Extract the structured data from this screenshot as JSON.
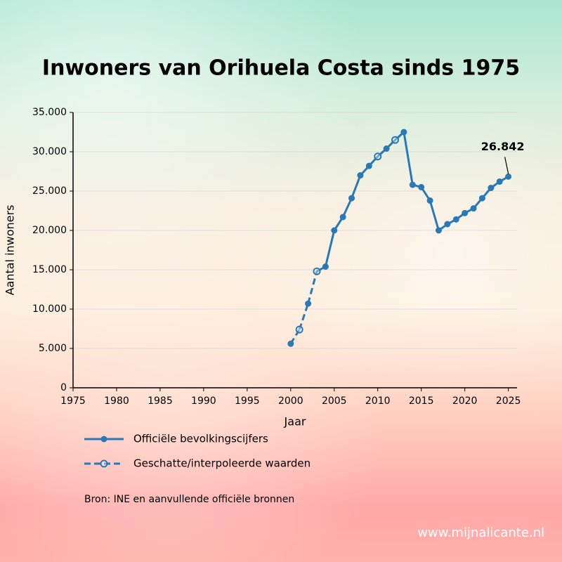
{
  "chart_data": {
    "type": "line",
    "title": "Inwoners van Orihuela Costa sinds 1975",
    "x_label": "Jaar",
    "y_label": "Aantal inwoners",
    "x": [
      2000,
      2001,
      2002,
      2003,
      2004,
      2005,
      2006,
      2007,
      2008,
      2009,
      2010,
      2011,
      2012,
      2013,
      2014,
      2015,
      2016,
      2017,
      2018,
      2019,
      2020,
      2021,
      2022,
      2023,
      2024,
      2025
    ],
    "series": [
      {
        "name": "Officiële bevolkingscijfers",
        "color": "#2a78b4",
        "marker": "filled",
        "values": [
          5600,
          null,
          10700,
          null,
          15400,
          20000,
          21700,
          24100,
          27000,
          28200,
          null,
          30400,
          null,
          32500,
          25800,
          25500,
          23800,
          20000,
          20800,
          21400,
          22200,
          22800,
          24100,
          25400,
          26200,
          26842
        ],
        "value_labels": [
          null,
          null,
          null,
          null,
          null,
          null,
          null,
          null,
          null,
          null,
          null,
          null,
          null,
          null,
          null,
          null,
          null,
          null,
          null,
          null,
          null,
          null,
          null,
          null,
          null,
          "26.842"
        ]
      },
      {
        "name": "Geschatte/interpoleerde waarden",
        "color": "#2a78b4",
        "marker": "open",
        "values": [
          null,
          7400,
          null,
          14800,
          null,
          null,
          null,
          null,
          null,
          null,
          29400,
          null,
          31500,
          null,
          null,
          null,
          null,
          null,
          null,
          null,
          null,
          null,
          null,
          null,
          null,
          null
        ]
      }
    ],
    "dash_xlim": [
      2000,
      2003
    ],
    "xlim": [
      1975,
      2026
    ],
    "xticks": [
      1975,
      1980,
      1985,
      1990,
      1995,
      2000,
      2005,
      2010,
      2015,
      2020,
      2025
    ],
    "ylim": [
      0,
      35000
    ],
    "yticks": [
      0,
      {
        "value": 5000,
        "label": "5.000"
      },
      {
        "value": 10000,
        "label": "10.000"
      },
      {
        "value": 15000,
        "label": "15.000"
      },
      {
        "value": 20000,
        "label": "20.000"
      },
      {
        "value": 25000,
        "label": "25.000"
      },
      {
        "value": 30000,
        "label": "30.000"
      },
      {
        "value": 35000,
        "label": "35.000"
      }
    ],
    "grid": true,
    "source": "Bron: INE en aanvullende officiële bronnen",
    "watermark": "www.mijnalicante.nl"
  }
}
